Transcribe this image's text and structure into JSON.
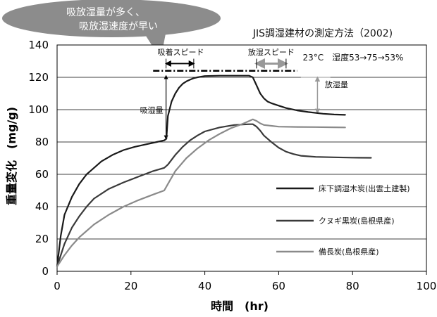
{
  "callout": {
    "line1": "吸放湿量が多く、",
    "line2": "吸放湿速度が早い"
  },
  "chart_data": {
    "type": "line",
    "title": "JIS調湿建材の測定方法（2002)",
    "xlabel": "時間　(hr)",
    "ylabel": "重量変化　(mg/g)",
    "xlim": [
      0,
      100
    ],
    "ylim": [
      0,
      140
    ],
    "xticks": [
      "0",
      "20",
      "40",
      "60",
      "80",
      "100"
    ],
    "yticks": [
      "0",
      "20",
      "40",
      "60",
      "80",
      "100",
      "120",
      "140"
    ],
    "grid": "horizontal",
    "legend_position": "right",
    "conditions": "23°C　湿度53→75→53%",
    "annotations": {
      "absorb_speed": "吸着スピード",
      "release_speed": "放湿スピード",
      "absorb_amount": "吸湿量",
      "release_amount": "放湿量"
    },
    "series": [
      {
        "name": "床下調湿木炭(出雲土建製)",
        "color": "#1a1a1a",
        "x": [
          0,
          1,
          2,
          4,
          6,
          8,
          10,
          12,
          15,
          18,
          21,
          24,
          27,
          29,
          29.6,
          30,
          31,
          32,
          33,
          34,
          35,
          36,
          37,
          38,
          40,
          44,
          48,
          52,
          53,
          54,
          55,
          56,
          57,
          58,
          60,
          62,
          65,
          68,
          72,
          75,
          78
        ],
        "y": [
          3,
          22,
          35,
          46,
          54,
          60,
          64,
          68,
          72,
          75,
          77,
          78.5,
          80,
          81,
          82,
          96,
          105,
          110,
          113.5,
          116,
          117.5,
          118.5,
          119.5,
          120,
          120.8,
          121,
          121,
          121,
          120,
          115,
          110,
          107,
          105,
          104,
          102.5,
          101,
          99.5,
          98.5,
          97.5,
          97,
          96.8
        ]
      },
      {
        "name": "クヌギ黒炭(島根県産)",
        "color": "#3a3a3a",
        "x": [
          0,
          2,
          4,
          6,
          8,
          10,
          14,
          18,
          22,
          26,
          29,
          30,
          32,
          34,
          36,
          38,
          40,
          44,
          48,
          52,
          53,
          54,
          55,
          56,
          58,
          60,
          62,
          64,
          66,
          70,
          75,
          80,
          85
        ],
        "y": [
          3,
          17,
          27,
          34,
          40,
          45,
          51,
          55,
          58.5,
          62,
          64,
          66,
          72,
          77,
          81,
          84,
          86.5,
          89,
          90.5,
          91,
          91,
          89.5,
          87,
          84,
          80,
          76.5,
          74,
          72.5,
          71.5,
          70.8,
          70.5,
          70.3,
          70.2
        ]
      },
      {
        "name": "備長炭(島根県産)",
        "color": "#8a8a8a",
        "x": [
          0,
          2,
          4,
          6,
          8,
          10,
          14,
          18,
          22,
          26,
          29,
          30,
          32,
          35,
          38,
          41,
          44,
          47,
          50,
          52,
          53,
          54,
          55,
          56,
          58,
          60,
          65,
          70,
          75,
          78
        ],
        "y": [
          3,
          10,
          16,
          21,
          25,
          29,
          35,
          40,
          44,
          47.5,
          50,
          54,
          62,
          70,
          76,
          81,
          85,
          88.5,
          91,
          93,
          94,
          93,
          91.5,
          90.5,
          90,
          89.5,
          89.3,
          89.2,
          89.1,
          89
        ]
      }
    ]
  }
}
